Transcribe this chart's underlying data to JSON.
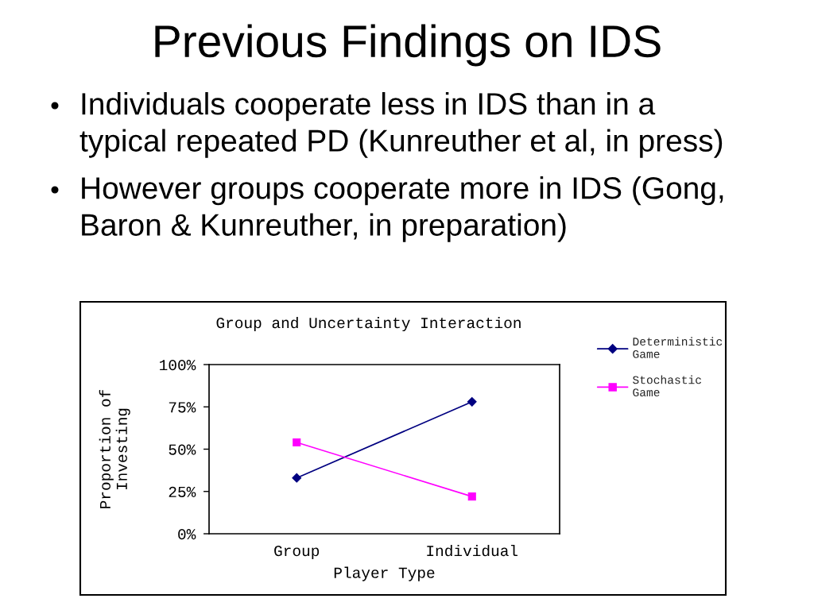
{
  "chart_data": {
    "type": "line",
    "title": "Previous Findings on IDS",
    "subtitle": "Group and Uncertainty Interaction",
    "xlabel": "Player Type",
    "ylabel": "Proportion of\nInvesting",
    "categories": [
      "Group",
      "Individual"
    ],
    "series": [
      {
        "name": "Deterministic\nGame",
        "color": "#000080",
        "marker": "diamond",
        "values": [
          33,
          78
        ]
      },
      {
        "name": "Stochastic\nGame",
        "color": "#ff00ff",
        "marker": "square",
        "values": [
          54,
          22
        ]
      }
    ],
    "ylim": [
      0,
      100
    ],
    "yticks": [
      {
        "value": 0,
        "label": "0%"
      },
      {
        "value": 25,
        "label": "25%"
      },
      {
        "value": 50,
        "label": "50%"
      },
      {
        "value": 75,
        "label": "75%"
      },
      {
        "value": 100,
        "label": "100%"
      }
    ],
    "grid": false,
    "legend": "right",
    "line_style": "solid",
    "annotations": [
      "Individuals cooperate less in IDS than in a typical repeated PD (Kunreuther et al, in press)",
      "However groups cooperate more in IDS (Gong, Baron & Kunreuther, in preparation)"
    ]
  }
}
